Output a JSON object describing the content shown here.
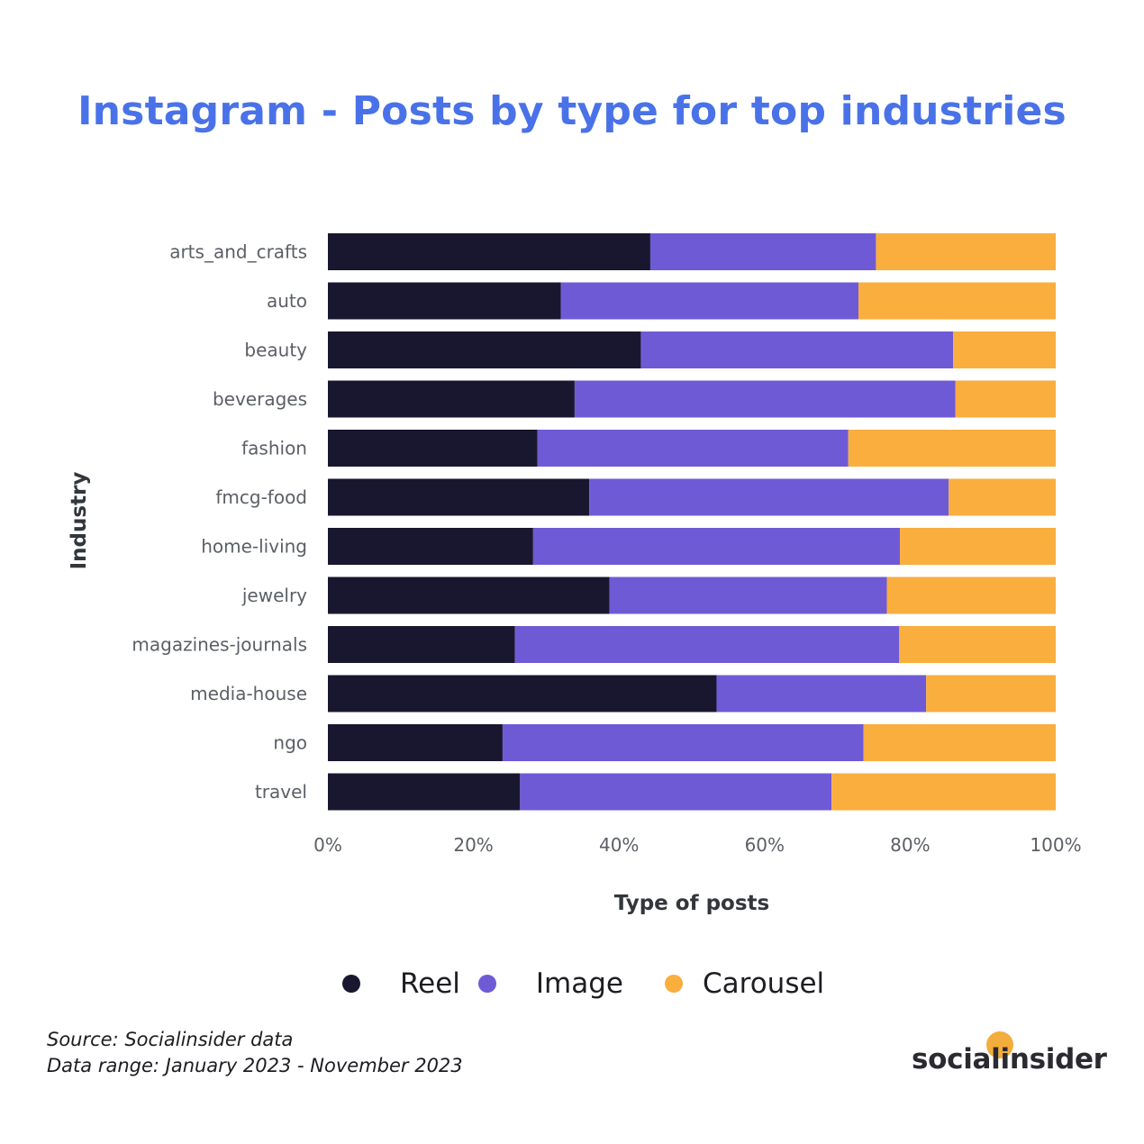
{
  "chart_data": {
    "type": "bar",
    "orientation": "horizontal",
    "stacked": true,
    "title": "Instagram - Posts by type for top industries",
    "xlabel": "Type of posts",
    "ylabel": "Industry",
    "xlim": [
      0,
      100
    ],
    "x_ticks": [
      "0%",
      "20%",
      "40%",
      "60%",
      "80%",
      "100%"
    ],
    "grid": false,
    "legend_position": "bottom",
    "categories": [
      "arts_and_crafts",
      "auto",
      "beauty",
      "beverages",
      "fashion",
      "fmcg-food",
      "home-living",
      "jewelry",
      "magazines-journals",
      "media-house",
      "ngo",
      "travel"
    ],
    "series": [
      {
        "name": "Reel",
        "color": "#19172f",
        "values": [
          44.3,
          32.0,
          43.0,
          33.9,
          28.8,
          35.9,
          28.2,
          38.7,
          25.7,
          53.4,
          24.0,
          26.4
        ]
      },
      {
        "name": "Image",
        "color": "#6f5ad6",
        "values": [
          31.0,
          40.9,
          42.9,
          52.3,
          42.7,
          49.4,
          50.4,
          38.1,
          52.8,
          28.8,
          49.6,
          42.8
        ]
      },
      {
        "name": "Carousel",
        "color": "#f9ae3e",
        "values": [
          24.7,
          27.1,
          14.1,
          13.8,
          28.5,
          14.7,
          21.4,
          23.2,
          21.5,
          17.8,
          26.4,
          30.8
        ]
      }
    ]
  },
  "footer": {
    "source": "Source: Socialinsider data",
    "range": "Data range: January 2023 - November 2023"
  },
  "brand": {
    "name": "socialinsider",
    "dot_color": "#f2ad3c"
  }
}
